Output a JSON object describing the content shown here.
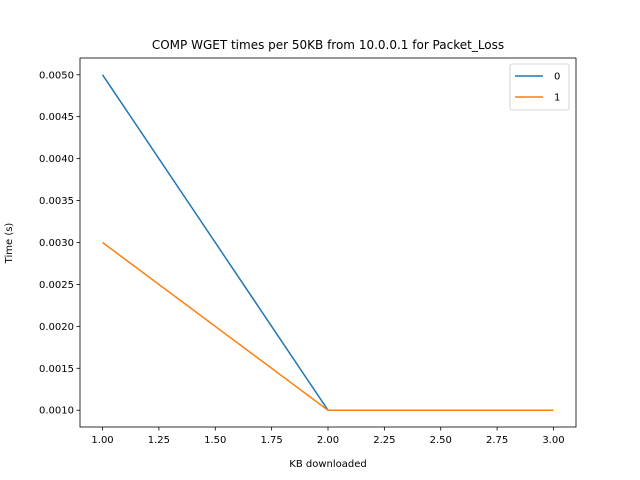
{
  "chart_data": {
    "type": "line",
    "title": "COMP WGET times per 50KB from 10.0.0.1 for Packet_Loss",
    "xlabel": "KB downloaded",
    "ylabel": "Time (s)",
    "xlim": [
      0.9,
      3.1
    ],
    "ylim": [
      0.0008,
      0.0052
    ],
    "x_ticks": [
      1.0,
      1.25,
      1.5,
      1.75,
      2.0,
      2.25,
      2.5,
      2.75,
      3.0
    ],
    "x_tick_labels": [
      "1.00",
      "1.25",
      "1.50",
      "1.75",
      "2.00",
      "2.25",
      "2.50",
      "2.75",
      "3.00"
    ],
    "y_ticks": [
      0.001,
      0.0015,
      0.002,
      0.0025,
      0.003,
      0.0035,
      0.004,
      0.0045,
      0.005
    ],
    "y_tick_labels": [
      "0.0010",
      "0.0015",
      "0.0020",
      "0.0025",
      "0.0030",
      "0.0035",
      "0.0040",
      "0.0045",
      "0.0050"
    ],
    "grid": false,
    "legend_position": "top-right",
    "series": [
      {
        "name": "0",
        "color": "#1f77b4",
        "x": [
          1.0,
          2.0,
          3.0
        ],
        "y": [
          0.005,
          0.001,
          0.001
        ]
      },
      {
        "name": "1",
        "color": "#ff7f0e",
        "x": [
          1.0,
          2.0,
          3.0
        ],
        "y": [
          0.003,
          0.001,
          0.001
        ]
      }
    ]
  }
}
